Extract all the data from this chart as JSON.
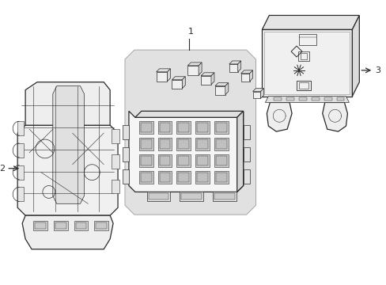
{
  "background_color": "#ffffff",
  "line_color": "#2a2a2a",
  "label_1": "1",
  "label_2": "2",
  "label_3": "3",
  "figsize": [
    4.89,
    3.6
  ],
  "dpi": 100,
  "panel_fill": "#dcdcdc",
  "panel_edge": "#999999",
  "comp_fill": "#f5f5f5",
  "comp_fill2": "#ececec",
  "comp_fill3": "#e8e8e8",
  "detail_fill": "#cccccc"
}
